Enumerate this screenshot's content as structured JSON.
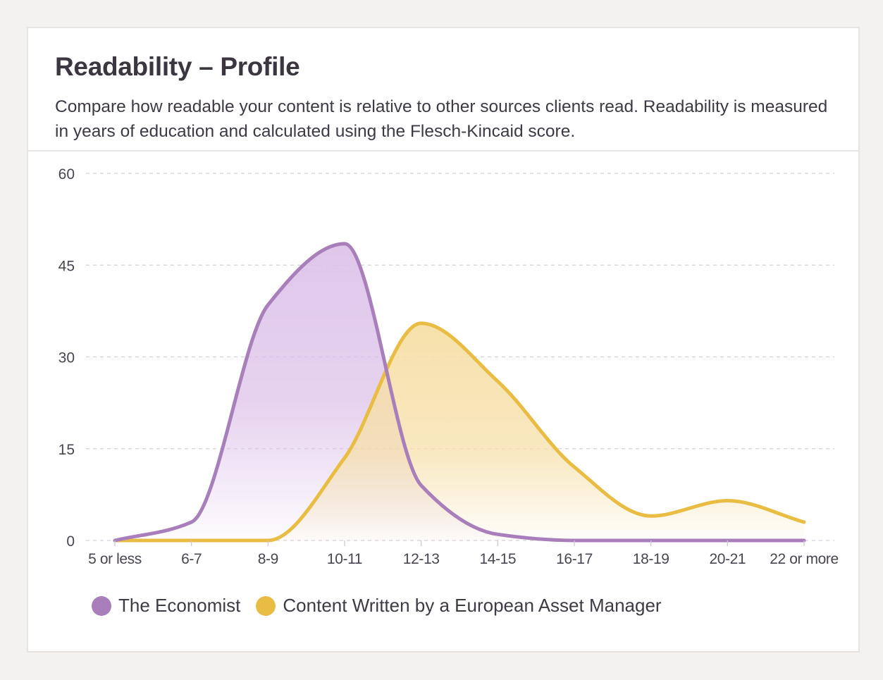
{
  "card": {
    "title": "Readability – Profile",
    "subtitle": "Compare how readable your content is relative to other sources clients read. Readability is measured in years of education and calculated using the Flesch-Kincaid score."
  },
  "colors": {
    "economist": "#a87fba",
    "economist_fill": "#dcc0e8",
    "asset_manager": "#e9bd44",
    "asset_manager_fill": "#f6dfa6",
    "grid": "#d6cfda",
    "axis_text": "#4a4550"
  },
  "chart_data": {
    "type": "area",
    "categories": [
      "5 or less",
      "6-7",
      "8-9",
      "10-11",
      "12-13",
      "14-15",
      "16-17",
      "18-19",
      "20-21",
      "22 or more"
    ],
    "ylim": [
      0,
      60
    ],
    "yticks": [
      0,
      15,
      30,
      45,
      60
    ],
    "grid": true,
    "legend_position": "bottom-left",
    "series": [
      {
        "name": "The Economist",
        "values": [
          0,
          3,
          38.5,
          48.5,
          9,
          1,
          0,
          0,
          0,
          0
        ]
      },
      {
        "name": "Content Written by a European Asset Manager",
        "values": [
          0,
          0,
          0,
          13.5,
          35.5,
          26,
          12,
          4,
          6.5,
          3
        ]
      }
    ]
  }
}
